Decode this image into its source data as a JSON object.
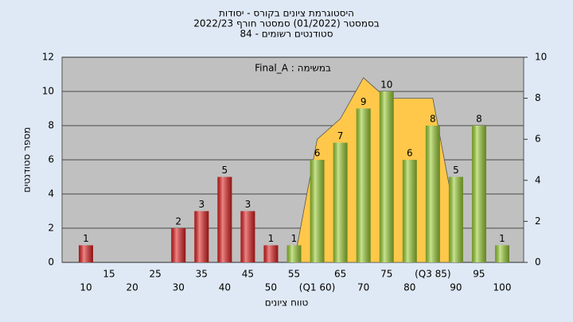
{
  "chart_data": {
    "type": "bar",
    "title": "היסטוגרמת ציונים בקורס - יסודות",
    "subtitle": "בסמסטר  (01/2022)  סמסטר חורף  2022/23",
    "subtitle2": "סטודנטים רשומים - 84",
    "annotation": "Final_A : במשימה",
    "x_label": "טווח ציונים",
    "y_label": "מספר סטודנטים",
    "categories": [
      "10",
      "15",
      "20",
      "25",
      "30",
      "35",
      "40",
      "45",
      "50",
      "55",
      "(Q1 60)",
      "65",
      "70",
      "75",
      "80",
      "(Q3 85)",
      "90",
      "95",
      "100"
    ],
    "values": [
      1,
      0,
      0,
      0,
      2,
      3,
      5,
      3,
      1,
      1,
      6,
      7,
      9,
      10,
      6,
      8,
      5,
      8,
      1
    ],
    "colors": [
      "#e02020",
      "#e02020",
      "#e02020",
      "#e02020",
      "#e02020",
      "#e02020",
      "#e02020",
      "#e02020",
      "#e02020",
      "#9acd32",
      "#9acd32",
      "#9acd32",
      "#9acd32",
      "#9acd32",
      "#9acd32",
      "#9acd32",
      "#9acd32",
      "#9acd32",
      "#9acd32"
    ],
    "area": {
      "color": "#ffc84a",
      "values": [
        null,
        null,
        null,
        null,
        null,
        null,
        null,
        null,
        null,
        0,
        6,
        7,
        9,
        8,
        8,
        8,
        2,
        null,
        null
      ]
    },
    "ylim": [
      0,
      12
    ],
    "yticks": [
      0,
      2,
      4,
      6,
      8,
      10,
      12
    ],
    "y2lim": [
      0,
      10
    ],
    "y2ticks": [
      0,
      2,
      4,
      6,
      8,
      10
    ],
    "grid": true
  }
}
